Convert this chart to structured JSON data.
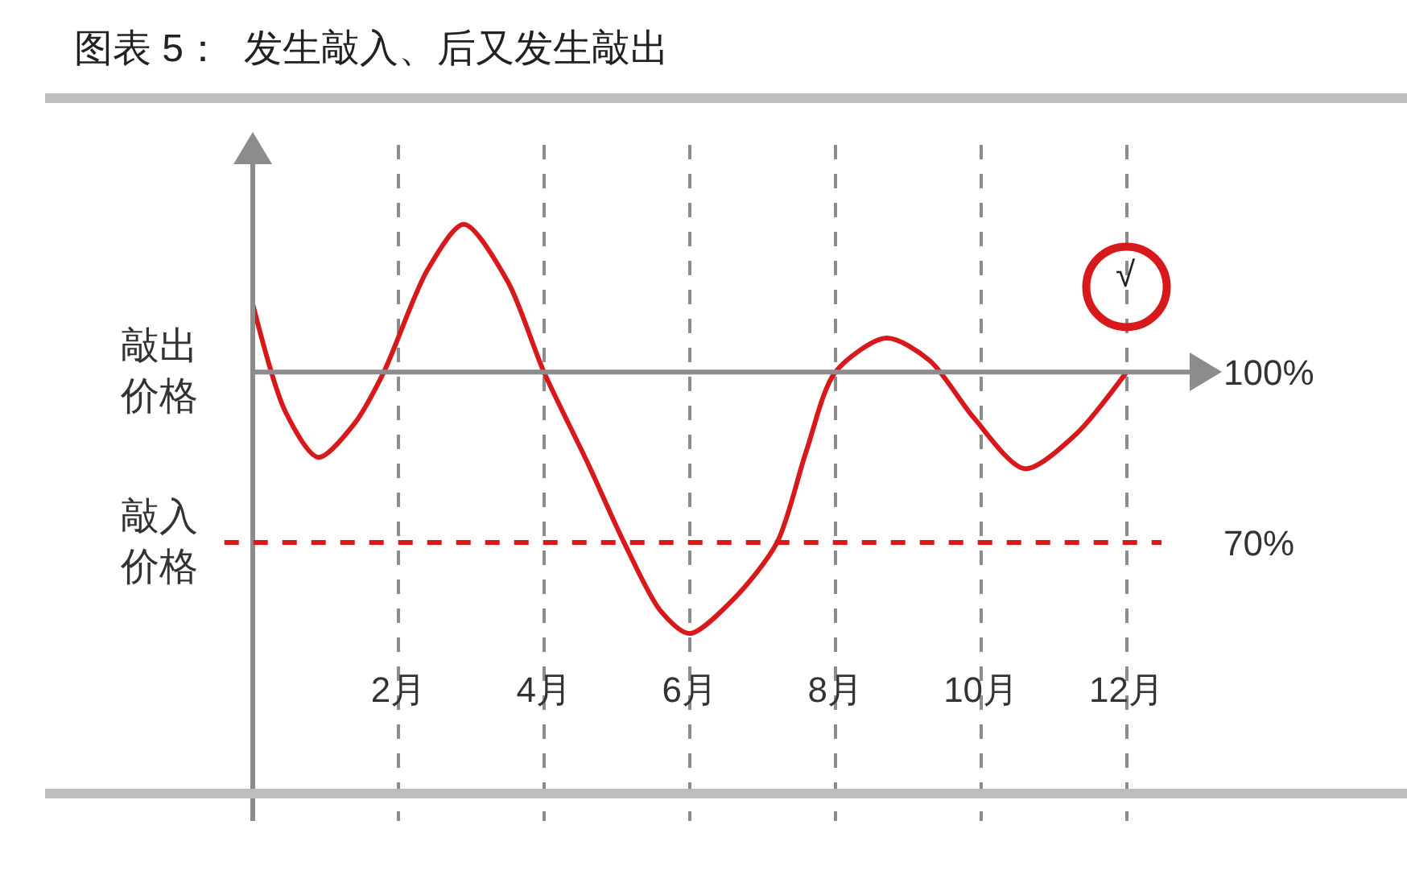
{
  "chart_data": {
    "type": "line",
    "title": "图表 5：  发生敲入、后又发生敲出",
    "x": [
      0,
      0.45,
      0.9,
      1.4,
      1.8,
      2.4,
      2.9,
      3.5,
      4.0,
      4.6,
      5.1,
      5.6,
      6.0,
      6.6,
      7.2,
      7.6,
      8.0,
      8.7,
      9.3,
      9.9,
      10.6,
      11.3,
      12
    ],
    "series": [
      {
        "color": "#d7191c",
        "values": [
          112,
          93,
          85,
          91,
          100,
          118,
          126,
          116,
          100,
          84,
          70,
          58,
          54,
          60,
          70,
          86,
          100,
          106,
          102,
          92,
          83,
          89,
          100
        ]
      }
    ],
    "xlim": [
      0,
      13
    ],
    "xticks": [
      {
        "value": 2,
        "label": "2月"
      },
      {
        "value": 4,
        "label": "4月"
      },
      {
        "value": 6,
        "label": "6月"
      },
      {
        "value": 8,
        "label": "8月"
      },
      {
        "value": 10,
        "label": "10月"
      },
      {
        "value": 12,
        "label": "12月"
      }
    ],
    "ylim": [
      21,
      140
    ],
    "yticks": [
      {
        "value": 70,
        "label": "70%"
      },
      {
        "value": 100,
        "label": "100%"
      }
    ],
    "grid": "x",
    "marker": "none",
    "ref_lines": [
      {
        "axis": "y",
        "value": 100,
        "label": "敲出价格",
        "color": "#8c8c8c",
        "line_style": "solid"
      },
      {
        "axis": "y",
        "value": 70,
        "label": "敲入价格",
        "color": "#d7191c",
        "line_style": "dashed"
      }
    ],
    "annotations": [
      "√"
    ]
  }
}
